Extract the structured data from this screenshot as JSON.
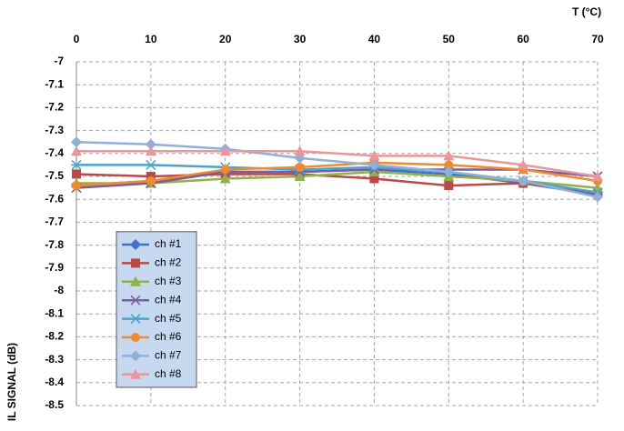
{
  "chart_data": {
    "type": "line",
    "x_label": "T (°C)",
    "y_label": "IL SIGNAL (dB)",
    "x": [
      0,
      10,
      20,
      30,
      40,
      50,
      60,
      70
    ],
    "xlim": [
      0,
      70
    ],
    "xticks": [
      0,
      10,
      20,
      30,
      40,
      50,
      60,
      70
    ],
    "ylim": [
      -8.5,
      -7
    ],
    "yticks": [
      -7,
      -7.1,
      -7.2,
      -7.3,
      -7.4,
      -7.5,
      -7.6,
      -7.7,
      -7.8,
      -7.9,
      -8,
      -8.1,
      -8.2,
      -8.3,
      -8.4,
      -8.5
    ],
    "grid": true,
    "legend": "lower left",
    "series": [
      {
        "name": "ch #1",
        "color": "#4472c4",
        "marker": "diamond",
        "values": [
          -7.54,
          -7.52,
          -7.48,
          -7.48,
          -7.47,
          -7.49,
          -7.53,
          -7.58
        ]
      },
      {
        "name": "ch #2",
        "color": "#b84a48",
        "marker": "square",
        "values": [
          -7.49,
          -7.5,
          -7.49,
          -7.49,
          -7.51,
          -7.54,
          -7.53,
          -7.57
        ]
      },
      {
        "name": "ch #3",
        "color": "#92b14c",
        "marker": "triangle",
        "values": [
          -7.53,
          -7.53,
          -7.51,
          -7.5,
          -7.48,
          -7.5,
          -7.52,
          -7.55
        ]
      },
      {
        "name": "ch #4",
        "color": "#7a5fa0",
        "marker": "x",
        "values": [
          -7.55,
          -7.53,
          -7.48,
          -7.48,
          -7.47,
          -7.47,
          -7.47,
          -7.5
        ]
      },
      {
        "name": "ch #5",
        "color": "#4ba5c4",
        "marker": "star",
        "values": [
          -7.45,
          -7.45,
          -7.46,
          -7.47,
          -7.46,
          -7.48,
          -7.52,
          -7.57
        ]
      },
      {
        "name": "ch #6",
        "color": "#ef8a2f",
        "marker": "circle",
        "values": [
          -7.54,
          -7.52,
          -7.47,
          -7.46,
          -7.44,
          -7.45,
          -7.47,
          -7.52
        ]
      },
      {
        "name": "ch #7",
        "color": "#94aedc",
        "marker": "diamond",
        "values": [
          -7.35,
          -7.36,
          -7.38,
          -7.42,
          -7.45,
          -7.48,
          -7.52,
          -7.59
        ]
      },
      {
        "name": "ch #8",
        "color": "#e8989a",
        "marker": "triangle",
        "values": [
          -7.39,
          -7.39,
          -7.39,
          -7.39,
          -7.41,
          -7.41,
          -7.45,
          -7.5
        ]
      }
    ]
  }
}
